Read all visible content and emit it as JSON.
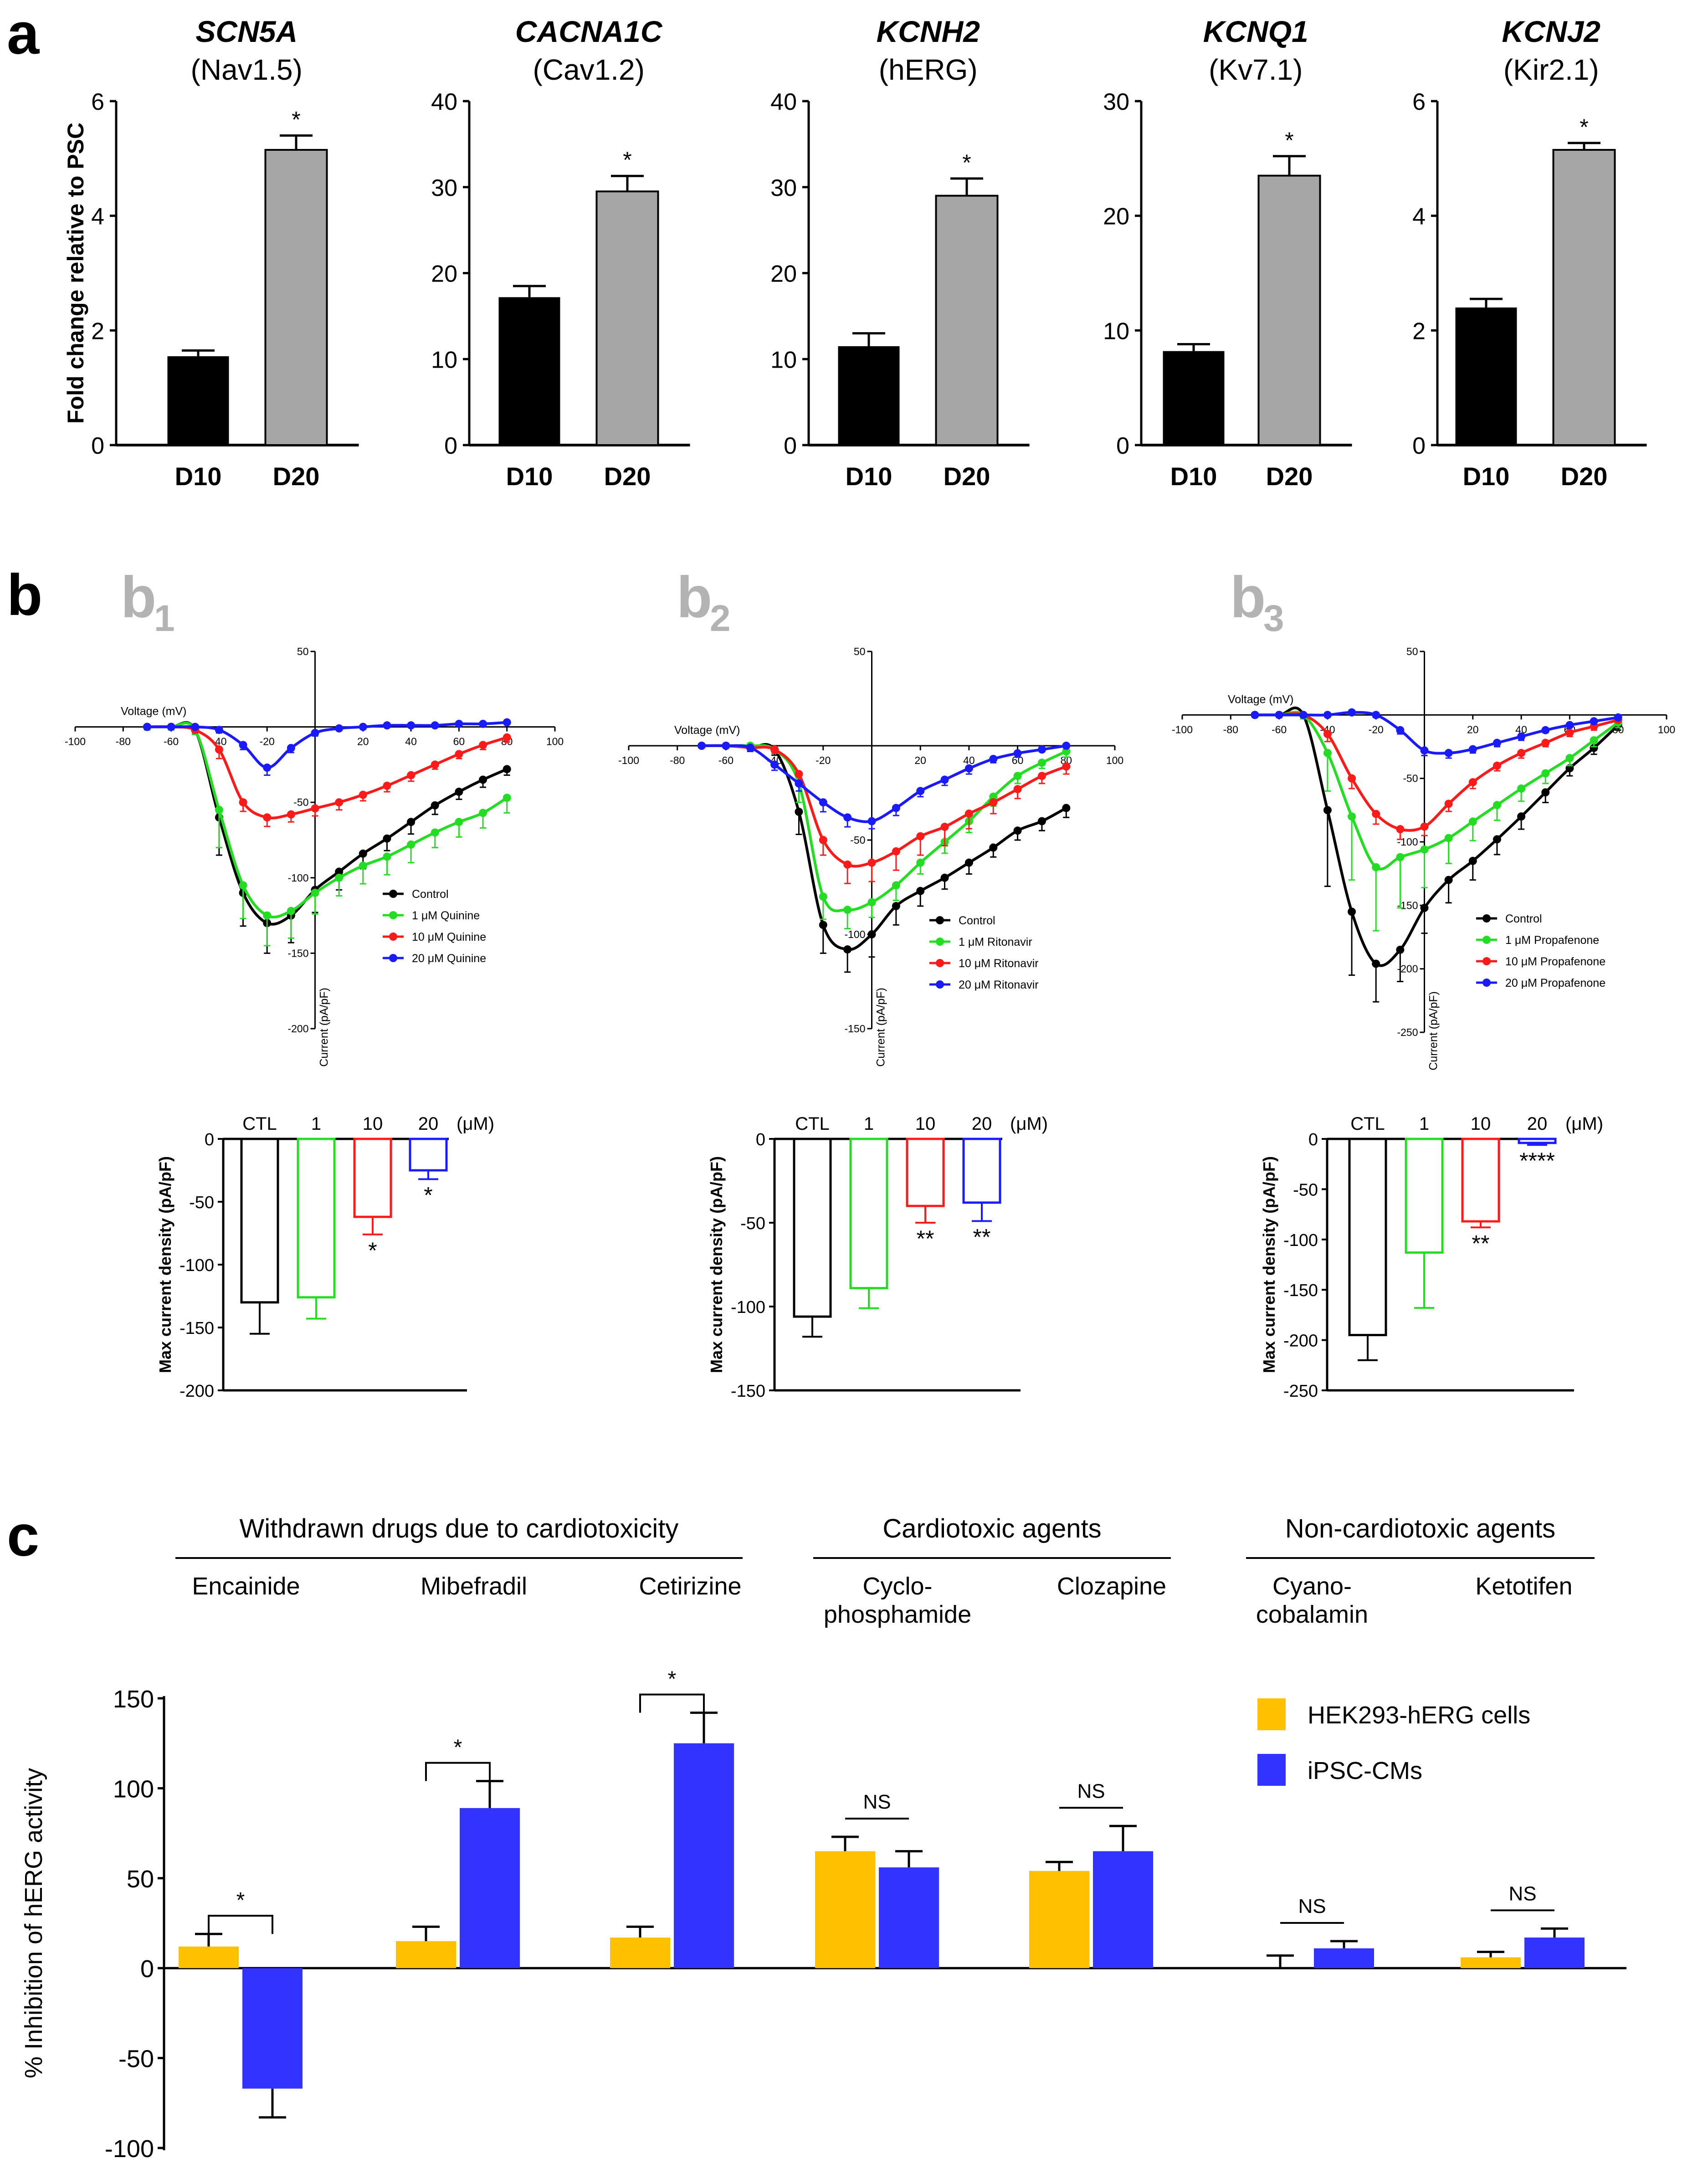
{
  "panel_labels": {
    "a": "a",
    "b": "b",
    "c": "c"
  },
  "sub_labels": [
    {
      "main": "b",
      "sub": "1"
    },
    {
      "main": "b",
      "sub": "2"
    },
    {
      "main": "b",
      "sub": "3"
    }
  ],
  "colors": {
    "d10": "#000000",
    "d20": "#a6a6a6",
    "gold": "#ffc000",
    "blue": "#3333ff",
    "black": "#000000",
    "green": "#22dd22",
    "red": "#ff1a1a",
    "blue_curve": "#1a1aff",
    "sublabel": "#b3b3b3"
  },
  "chart_data": [
    {
      "type": "bar",
      "panel": "a",
      "gene": "SCN5A",
      "protein": "(Nav1.5)",
      "ylabel": "Fold change relative to PSC",
      "categories": [
        "D10",
        "D20"
      ],
      "values": [
        1.55,
        5.15
      ],
      "errors": [
        0.1,
        0.25
      ],
      "ylim": [
        0,
        6
      ],
      "yticks": [
        "0",
        "2",
        "4",
        "6"
      ],
      "sig": "*"
    },
    {
      "type": "bar",
      "panel": "a",
      "gene": "CACNA1C",
      "protein": "(Cav1.2)",
      "ylabel": "",
      "categories": [
        "D10",
        "D20"
      ],
      "values": [
        17.2,
        29.5
      ],
      "errors": [
        1.3,
        1.8
      ],
      "ylim": [
        0,
        40
      ],
      "yticks": [
        "0",
        "10",
        "20",
        "30",
        "40"
      ],
      "sig": "*"
    },
    {
      "type": "bar",
      "panel": "a",
      "gene": "KCNH2",
      "protein": "(hERG)",
      "ylabel": "",
      "categories": [
        "D10",
        "D20"
      ],
      "values": [
        11.5,
        29
      ],
      "errors": [
        1.5,
        2
      ],
      "ylim": [
        0,
        40
      ],
      "yticks": [
        "0",
        "10",
        "20",
        "30",
        "40"
      ],
      "sig": "*"
    },
    {
      "type": "bar",
      "panel": "a",
      "gene": "KCNQ1",
      "protein": "(Kv7.1)",
      "ylabel": "",
      "categories": [
        "D10",
        "D20"
      ],
      "values": [
        8.2,
        23.5
      ],
      "errors": [
        0.6,
        1.7
      ],
      "ylim": [
        0,
        30
      ],
      "yticks": [
        "0",
        "10",
        "20",
        "30"
      ],
      "sig": "*"
    },
    {
      "type": "bar",
      "panel": "a",
      "gene": "KCNJ2",
      "protein": "(Kir2.1)",
      "ylabel": "",
      "categories": [
        "D10",
        "D20"
      ],
      "values": [
        2.4,
        5.15
      ],
      "errors": [
        0.15,
        0.12
      ],
      "ylim": [
        0,
        6
      ],
      "yticks": [
        "0",
        "2",
        "4",
        "6"
      ],
      "sig": "*"
    },
    {
      "type": "line",
      "panel": "b1",
      "xlabel": "Voltage (mV)",
      "ylabel": "Current (pA/pF)",
      "xlim": [
        -100,
        100
      ],
      "ylim": [
        -200,
        50
      ],
      "xticks": [
        "-100",
        "-80",
        "-60",
        "-40",
        "-20",
        "20",
        "40",
        "60",
        "80",
        "100"
      ],
      "yticks": [
        "50",
        "-50",
        "-100",
        "-150",
        "-200"
      ],
      "x": [
        -70,
        -60,
        -50,
        -40,
        -30,
        -20,
        -10,
        0,
        10,
        20,
        30,
        40,
        50,
        60,
        70,
        80
      ],
      "series": [
        {
          "name": "Control",
          "values": [
            0,
            0,
            -2,
            -60,
            -110,
            -130,
            -125,
            -108,
            -96,
            -84,
            -74,
            -63,
            -52,
            -43,
            -35,
            -28
          ],
          "errors": [
            2,
            2,
            3,
            25,
            22,
            20,
            18,
            15,
            12,
            10,
            8,
            8,
            6,
            5,
            5,
            4
          ]
        },
        {
          "name": "1 μM Quinine",
          "values": [
            0,
            0,
            -2,
            -55,
            -105,
            -125,
            -122,
            -110,
            -100,
            -92,
            -86,
            -78,
            -70,
            -63,
            -57,
            -47
          ],
          "errors": [
            2,
            2,
            3,
            25,
            22,
            20,
            18,
            14,
            12,
            12,
            12,
            12,
            10,
            10,
            10,
            10
          ]
        },
        {
          "name": "10 μM Quinine",
          "values": [
            0,
            0,
            -2,
            -15,
            -50,
            -60,
            -58,
            -54,
            -50,
            -45,
            -39,
            -32,
            -25,
            -18,
            -12,
            -7
          ],
          "errors": [
            1,
            1,
            2,
            6,
            6,
            6,
            5,
            5,
            5,
            4,
            4,
            4,
            3,
            3,
            3,
            3
          ]
        },
        {
          "name": "20 μM Quinine",
          "values": [
            0,
            0,
            0,
            -2,
            -12,
            -27,
            -14,
            -4,
            -1,
            0,
            1,
            1,
            1,
            2,
            2,
            3
          ],
          "errors": [
            1,
            1,
            1,
            2,
            3,
            5,
            3,
            2,
            1,
            1,
            1,
            1,
            1,
            1,
            1,
            1
          ]
        }
      ]
    },
    {
      "type": "bar",
      "panel": "b1",
      "ylabel": "Max current density (pA/pF)",
      "unit": "(μM)",
      "categories": [
        "CTL",
        "1",
        "10",
        "20"
      ],
      "values": [
        -130,
        -126,
        -62,
        -25
      ],
      "errors": [
        25,
        17,
        14,
        7
      ],
      "ylim": [
        -200,
        0
      ],
      "yticks": [
        "0",
        "-50",
        "-100",
        "-150",
        "-200"
      ],
      "sig": [
        "",
        "",
        "*",
        "*"
      ]
    },
    {
      "type": "line",
      "panel": "b2",
      "xlabel": "Voltage (mV)",
      "ylabel": "Current (pA/pF)",
      "xlim": [
        -100,
        100
      ],
      "ylim": [
        -150,
        50
      ],
      "xticks": [
        "-100",
        "-80",
        "-60",
        "-40",
        "-20",
        "20",
        "40",
        "60",
        "80",
        "100"
      ],
      "yticks": [
        "50",
        "-50",
        "-100",
        "-150"
      ],
      "x": [
        -70,
        -60,
        -50,
        -40,
        -30,
        -20,
        -10,
        0,
        10,
        20,
        30,
        40,
        50,
        60,
        70,
        80
      ],
      "series": [
        {
          "name": "Control",
          "values": [
            0,
            0,
            -1,
            -2,
            -35,
            -95,
            -108,
            -100,
            -85,
            -77,
            -70,
            -62,
            -54,
            -45,
            -40,
            -33
          ],
          "errors": [
            1,
            1,
            2,
            3,
            12,
            15,
            12,
            12,
            10,
            8,
            6,
            6,
            5,
            5,
            5,
            5
          ]
        },
        {
          "name": "1 μM Ritonavir",
          "values": [
            0,
            0,
            0,
            -2,
            -20,
            -80,
            -87,
            -83,
            -74,
            -62,
            -51,
            -40,
            -27,
            -16,
            -9,
            -3
          ],
          "errors": [
            1,
            1,
            1,
            2,
            10,
            12,
            10,
            8,
            8,
            6,
            6,
            6,
            5,
            4,
            3,
            3
          ]
        },
        {
          "name": "10 μM Ritonavir",
          "values": [
            0,
            0,
            -1,
            -2,
            -15,
            -50,
            -63,
            -62,
            -56,
            -48,
            -43,
            -36,
            -30,
            -23,
            -16,
            -11
          ],
          "errors": [
            1,
            1,
            1,
            2,
            5,
            8,
            10,
            10,
            10,
            10,
            10,
            8,
            6,
            5,
            4,
            4
          ]
        },
        {
          "name": "20 μM Ritonavir",
          "values": [
            0,
            0,
            -1,
            -10,
            -20,
            -30,
            -38,
            -40,
            -33,
            -24,
            -18,
            -12,
            -7,
            -4,
            -2,
            0
          ],
          "errors": [
            1,
            1,
            2,
            3,
            4,
            5,
            5,
            4,
            4,
            3,
            3,
            3,
            2,
            2,
            1,
            1
          ]
        }
      ]
    },
    {
      "type": "bar",
      "panel": "b2",
      "ylabel": "Max current density (pA/pF)",
      "unit": "(μM)",
      "categories": [
        "CTL",
        "1",
        "10",
        "20"
      ],
      "values": [
        -106,
        -89,
        -40,
        -38
      ],
      "errors": [
        12,
        12,
        10,
        11
      ],
      "ylim": [
        -150,
        0
      ],
      "yticks": [
        "0",
        "-50",
        "-100",
        "-150"
      ],
      "sig": [
        "",
        "",
        "**",
        "**"
      ]
    },
    {
      "type": "line",
      "panel": "b3",
      "xlabel": "Voltage (mV)",
      "ylabel": "Current (pA/pF)",
      "xlim": [
        -100,
        100
      ],
      "ylim": [
        -250,
        50
      ],
      "xticks": [
        "-100",
        "-80",
        "-60",
        "-40",
        "-20",
        "20",
        "40",
        "60",
        "80",
        "100"
      ],
      "yticks": [
        "50",
        "-50",
        "-100",
        "-150",
        "-200",
        "-250"
      ],
      "x": [
        -70,
        -60,
        -50,
        -40,
        -30,
        -20,
        -10,
        0,
        10,
        20,
        30,
        40,
        50,
        60,
        70,
        80
      ],
      "series": [
        {
          "name": "Control",
          "values": [
            0,
            0,
            0,
            -75,
            -155,
            -196,
            -185,
            -152,
            -130,
            -115,
            -98,
            -80,
            -61,
            -42,
            -26,
            -8
          ],
          "errors": [
            2,
            2,
            3,
            60,
            50,
            30,
            25,
            20,
            18,
            15,
            12,
            10,
            8,
            6,
            5,
            4
          ]
        },
        {
          "name": "1 μM Propafenone",
          "values": [
            0,
            0,
            0,
            -30,
            -80,
            -120,
            -112,
            -106,
            -97,
            -84,
            -71,
            -58,
            -46,
            -34,
            -20,
            -6
          ],
          "errors": [
            2,
            2,
            3,
            30,
            50,
            50,
            40,
            30,
            20,
            15,
            12,
            10,
            8,
            6,
            5,
            4
          ]
        },
        {
          "name": "10 μM Propafenone",
          "values": [
            0,
            0,
            0,
            -15,
            -50,
            -78,
            -90,
            -88,
            -70,
            -53,
            -40,
            -30,
            -22,
            -14,
            -9,
            -4
          ],
          "errors": [
            1,
            1,
            2,
            6,
            8,
            8,
            8,
            7,
            6,
            5,
            4,
            4,
            3,
            3,
            3,
            2
          ]
        },
        {
          "name": "20 μM Propafenone",
          "values": [
            0,
            0,
            0,
            0,
            2,
            0,
            -12,
            -28,
            -30,
            -27,
            -22,
            -17,
            -12,
            -8,
            -5,
            -2
          ],
          "errors": [
            1,
            1,
            1,
            1,
            2,
            2,
            3,
            4,
            4,
            3,
            3,
            3,
            2,
            2,
            2,
            1
          ]
        }
      ]
    },
    {
      "type": "bar",
      "panel": "b3",
      "ylabel": "Max current density (pA/pF)",
      "unit": "(μM)",
      "categories": [
        "CTL",
        "1",
        "10",
        "20"
      ],
      "values": [
        -195,
        -113,
        -82,
        -4
      ],
      "errors": [
        25,
        55,
        6,
        2
      ],
      "ylim": [
        -250,
        0
      ],
      "yticks": [
        "0",
        "-50",
        "-100",
        "-150",
        "-200",
        "-250"
      ],
      "sig": [
        "",
        "",
        "**",
        "****"
      ]
    },
    {
      "type": "bar",
      "panel": "c",
      "ylabel": "% Inhibition of hERG activity",
      "ylim": [
        -100,
        150
      ],
      "yticks": [
        "150",
        "100",
        "50",
        "0",
        "-50",
        "-100"
      ],
      "groups": [
        {
          "title": "Withdrawn drugs due to cardiotoxicity",
          "drugs": [
            "Encainide",
            "Mibefradil",
            "Cetirizine"
          ]
        },
        {
          "title": "Cardiotoxic agents",
          "drugs": [
            "Cyclo-|phosphamide",
            "Clozapine"
          ]
        },
        {
          "title": "Non-cardiotoxic agents",
          "drugs": [
            "Cyano-|cobalamin",
            "Ketotifen"
          ]
        }
      ],
      "categories": [
        "Encainide",
        "Mibefradil",
        "Cetirizine",
        "Cyclophosphamide",
        "Clozapine",
        "Cyanocobalamin",
        "Ketotifen"
      ],
      "series": [
        {
          "name": "HEK293-hERG  cells",
          "values": [
            12,
            15,
            17,
            65,
            54,
            0,
            6
          ],
          "errors": [
            7,
            8,
            6,
            8,
            5,
            7,
            3
          ]
        },
        {
          "name": "iPSC-CMs",
          "values": [
            -67,
            89,
            125,
            56,
            65,
            11,
            17
          ],
          "errors": [
            16,
            15,
            17,
            9,
            14,
            4,
            5
          ]
        }
      ],
      "sig": [
        "*",
        "*",
        "*",
        "NS",
        "NS",
        "NS",
        "NS"
      ]
    }
  ]
}
